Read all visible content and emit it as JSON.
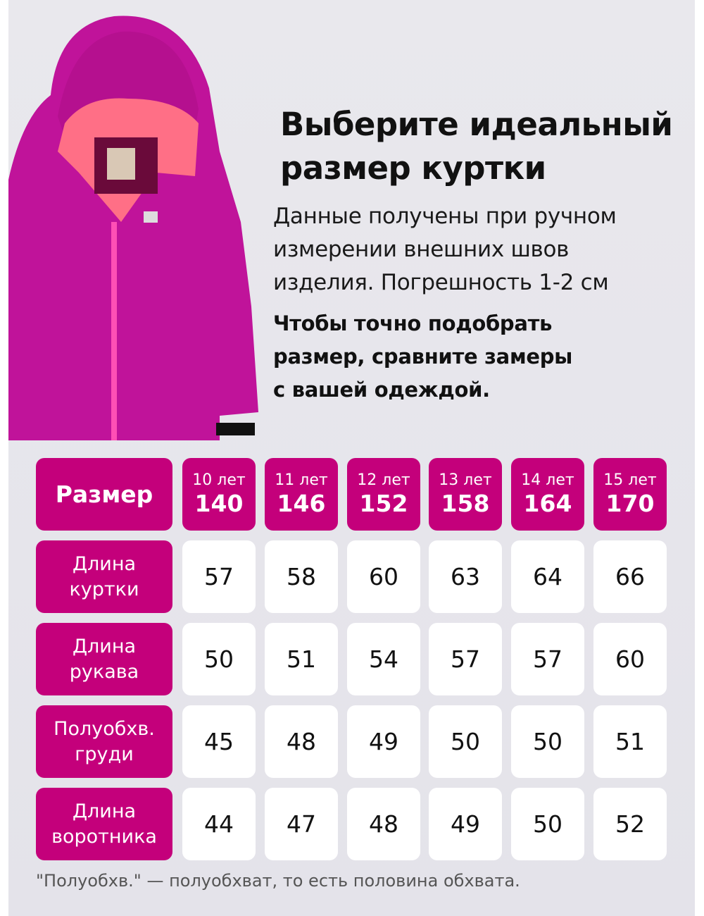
{
  "heading": {
    "line1": "Выберите идеальный",
    "line2": "размер куртки"
  },
  "description": {
    "line1": "Данные получены при ручном",
    "line2": "измерении внешних швов",
    "line3": "изделия. Погрешность 1-2 см"
  },
  "advice": {
    "line1": "Чтобы точно подобрать",
    "line2": "размер, сравните замеры",
    "line3": "с вашей одеждой."
  },
  "colors": {
    "accent": "#c4007b",
    "background": "#e6e5eb",
    "jacket": "#c0139a"
  },
  "table": {
    "header_label": "Размер",
    "sizes": [
      {
        "age": "10 лет",
        "height": "140"
      },
      {
        "age": "11 лет",
        "height": "146"
      },
      {
        "age": "12 лет",
        "height": "152"
      },
      {
        "age": "13 лет",
        "height": "158"
      },
      {
        "age": "14 лет",
        "height": "164"
      },
      {
        "age": "15 лет",
        "height": "170"
      }
    ],
    "rows": [
      {
        "l1": "Длина",
        "l2": "куртки",
        "values": [
          "57",
          "58",
          "60",
          "63",
          "64",
          "66"
        ]
      },
      {
        "l1": "Длина",
        "l2": "рукава",
        "values": [
          "50",
          "51",
          "54",
          "57",
          "57",
          "60"
        ]
      },
      {
        "l1": "Полуобхв.",
        "l2": "груди",
        "values": [
          "45",
          "48",
          "49",
          "50",
          "50",
          "51"
        ]
      },
      {
        "l1": "Длина",
        "l2": "воротника",
        "values": [
          "44",
          "47",
          "48",
          "49",
          "50",
          "52"
        ]
      }
    ]
  },
  "footnote": "\"Полуобхв.\" — полуобхват, то есть половина обхвата."
}
